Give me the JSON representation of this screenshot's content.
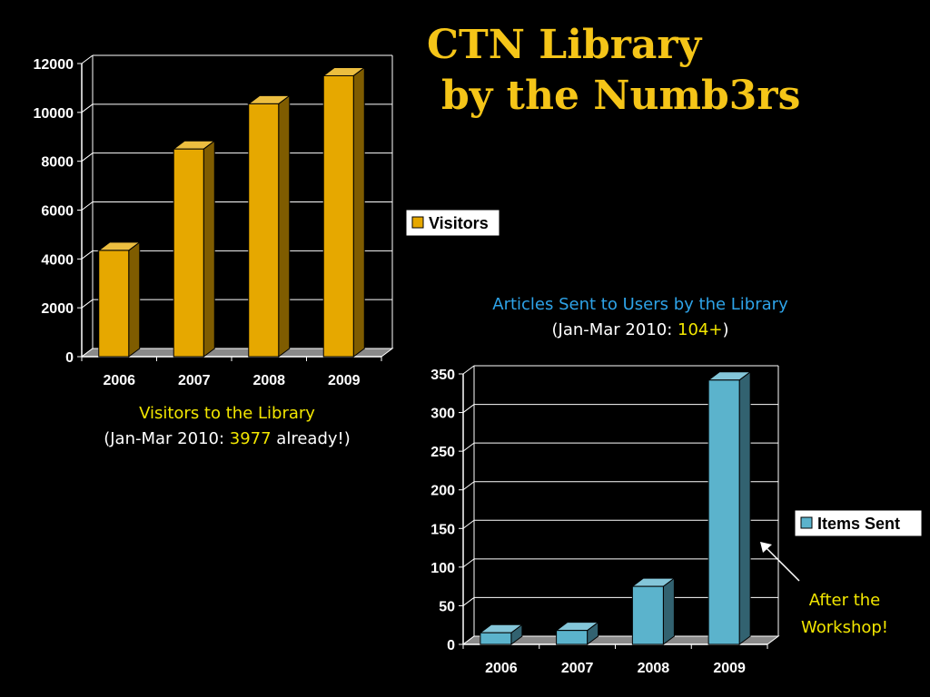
{
  "title": {
    "line1": "CTN Library",
    "line2": "by the Numb3rs"
  },
  "caption_visitors": {
    "line1": "Visitors to the Library",
    "prefix": "(Jan-Mar 2010: ",
    "highlight": "3977",
    "suffix": " already!)"
  },
  "caption_articles": {
    "line1": "Articles Sent to Users by the Library",
    "prefix": "(Jan-Mar 2010: ",
    "highlight": "104+",
    "suffix": ")"
  },
  "annotation": {
    "line1": "After the",
    "line2": "Workshop!"
  },
  "colors": {
    "gold": "#e6a800",
    "teal": "#5bb3cc",
    "title": "#f5c518"
  },
  "chart_data": [
    {
      "type": "bar",
      "categories": [
        "2006",
        "2007",
        "2008",
        "2009"
      ],
      "series": [
        {
          "name": "Visitors",
          "values": [
            4350,
            8500,
            10350,
            11500
          ]
        }
      ],
      "ylim": [
        0,
        12000
      ],
      "yticks": [
        0,
        2000,
        4000,
        6000,
        8000,
        10000,
        12000
      ],
      "legend": "right",
      "grid": true
    },
    {
      "type": "bar",
      "categories": [
        "2006",
        "2007",
        "2008",
        "2009"
      ],
      "series": [
        {
          "name": "Items Sent",
          "values": [
            15,
            18,
            75,
            342
          ]
        }
      ],
      "ylim": [
        0,
        350
      ],
      "yticks": [
        0,
        50,
        100,
        150,
        200,
        250,
        300,
        350
      ],
      "legend": "right",
      "grid": true
    }
  ]
}
